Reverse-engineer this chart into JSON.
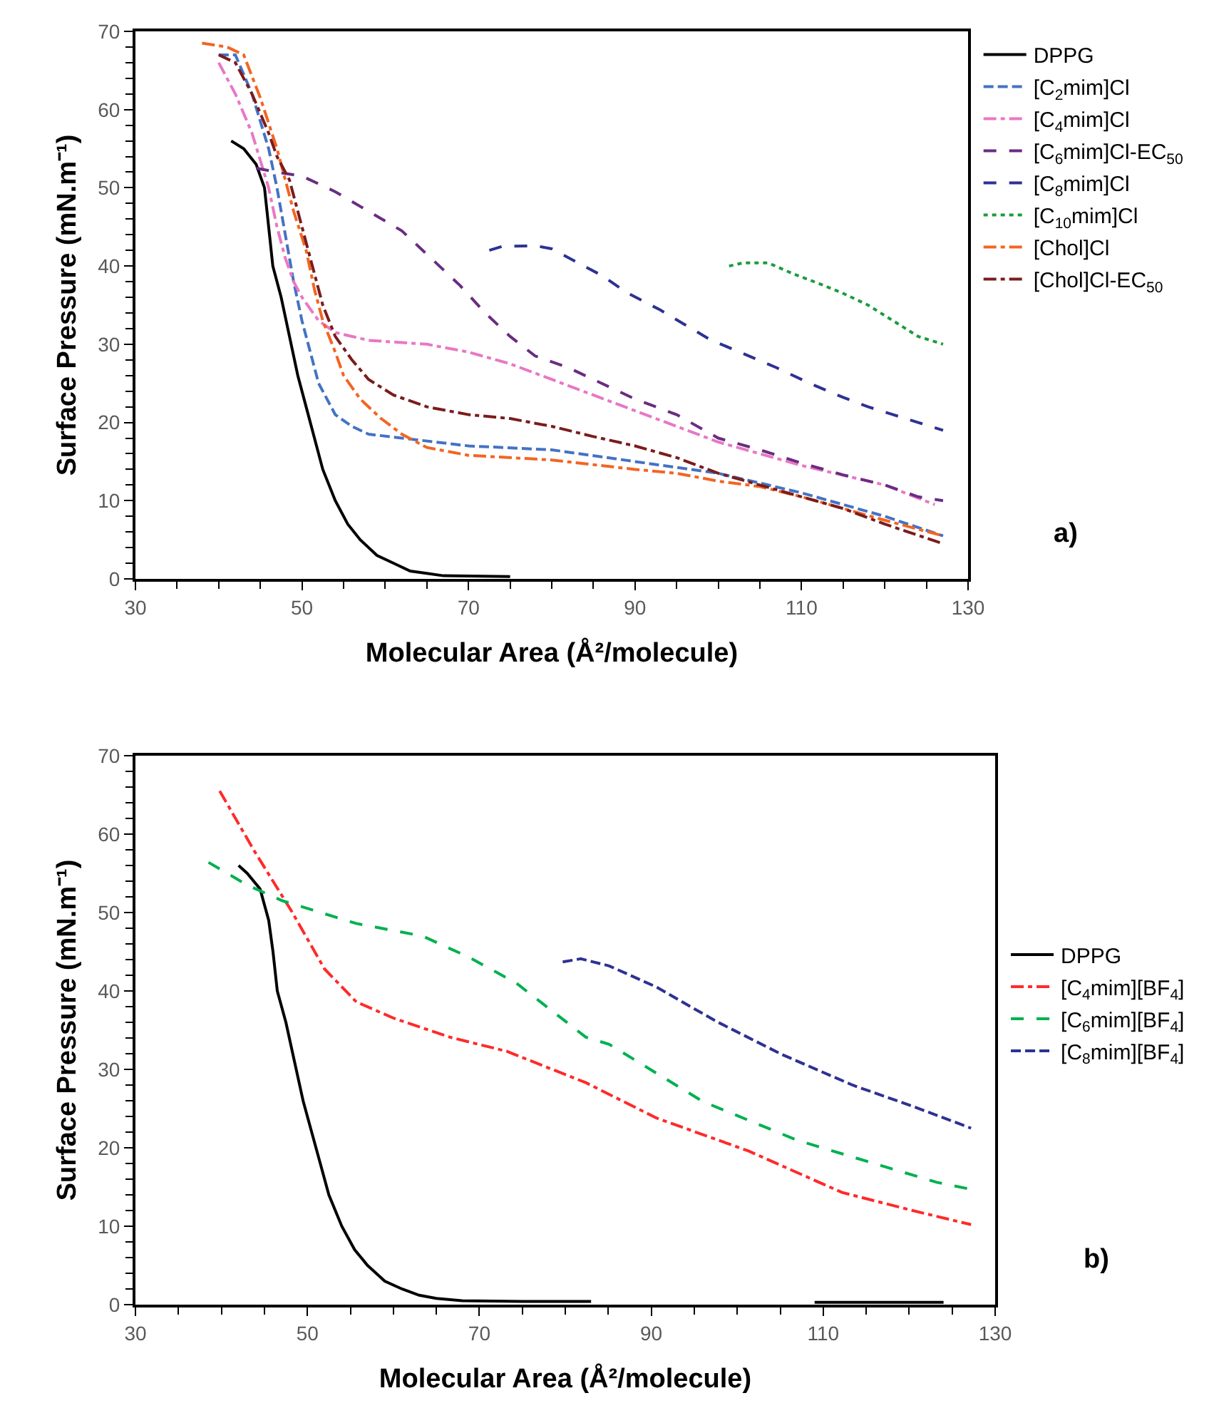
{
  "chart_data": [
    {
      "type": "line",
      "xlabel": "Molecular Area (Å²/molecule)",
      "ylabel": "Surface Pressure (mN.m⁻¹)",
      "xlim": [
        30,
        130
      ],
      "xticks": [
        30,
        50,
        70,
        90,
        110,
        130
      ],
      "ylim": [
        0,
        70
      ],
      "yticks": [
        0,
        10,
        20,
        30,
        40,
        50,
        60,
        70
      ],
      "grid": false,
      "legend": "top right",
      "marker": "none",
      "annotations": [
        "a)"
      ],
      "series": [
        {
          "name": "DPPG",
          "color": "#000000",
          "line_style": "solid",
          "x": [
            41.5,
            43,
            44.5,
            45.5,
            46,
            46.5,
            47.5,
            48.5,
            49.5,
            50.5,
            51.5,
            52.5,
            54,
            55.5,
            57,
            59,
            61,
            63,
            65,
            67,
            75
          ],
          "values": [
            56,
            55,
            53,
            50,
            45,
            40,
            36,
            31,
            26,
            22,
            18,
            14,
            10,
            7,
            5,
            3,
            2,
            1,
            0.7,
            0.4,
            0.3
          ]
        },
        {
          "name": "[C$_{2}$mim]Cl",
          "color": "#4472c4",
          "line_style": "longdash",
          "x": [
            40,
            42,
            44,
            46,
            47,
            48,
            49,
            50,
            51,
            52,
            54,
            56,
            58,
            62,
            70,
            80,
            90,
            100,
            110,
            120,
            127
          ],
          "values": [
            67,
            67,
            62,
            55,
            50,
            44,
            38,
            33,
            29,
            25,
            21,
            19.5,
            18.5,
            18,
            17,
            16.5,
            15,
            13.5,
            11,
            8,
            5.5
          ]
        },
        {
          "name": "[C$_{4}$mim]Cl",
          "color": "#e878c4",
          "line_style": "dashdot",
          "x": [
            40,
            42,
            44,
            46,
            47,
            48,
            49,
            50,
            52,
            54,
            58,
            65,
            70,
            75,
            80,
            90,
            100,
            110,
            120,
            126
          ],
          "values": [
            66,
            62,
            57,
            50,
            45,
            41,
            38,
            36,
            33,
            31.5,
            30.5,
            30,
            29,
            27.5,
            25.5,
            21.5,
            17.5,
            14.5,
            12,
            9.5
          ]
        },
        {
          "name": "[C$_{6}$mim]Cl-EC$_{50}$",
          "color": "#6a2c82",
          "line_style": "dashed",
          "x": [
            44.5,
            47,
            50,
            54,
            58,
            62,
            66,
            69,
            72,
            75,
            78,
            82,
            86,
            90,
            95,
            100,
            105,
            110,
            115,
            120,
            124,
            127
          ],
          "values": [
            52.5,
            52,
            51.5,
            49.5,
            47,
            44.5,
            40.5,
            37.5,
            34,
            31,
            28.5,
            27,
            25,
            23,
            21,
            18,
            16.5,
            14.8,
            13.3,
            12,
            10.5,
            10
          ]
        },
        {
          "name": "[C$_{8}$mim]Cl",
          "color": "#2e3192",
          "line_style": "dashed",
          "x": [
            72.5,
            74,
            78,
            80,
            83,
            86,
            89,
            93,
            96,
            99,
            103,
            107,
            111,
            115,
            118,
            121,
            124,
            127
          ],
          "values": [
            42,
            42.5,
            42.6,
            42.2,
            40.5,
            38.8,
            36.6,
            34.4,
            32.5,
            30.6,
            28.8,
            27,
            25,
            23.2,
            22,
            21,
            20,
            19
          ]
        },
        {
          "name": "[C$_{10}$mim]Cl",
          "color": "#1a9c3e",
          "line_style": "dotted",
          "x": [
            101.3,
            103,
            106,
            109,
            112,
            115,
            118,
            121,
            124,
            127
          ],
          "values": [
            40,
            40.4,
            40.4,
            39,
            37.8,
            36.5,
            35,
            33,
            31,
            30
          ]
        },
        {
          "name": "[Chol]Cl",
          "color": "#f26522",
          "line_style": "dashdot",
          "x": [
            38,
            41,
            43,
            45,
            47,
            48,
            49,
            50.5,
            51.5,
            52.5,
            54,
            55,
            57,
            59.5,
            62,
            65,
            70,
            80,
            90,
            95,
            100,
            105,
            110,
            115,
            120,
            127
          ],
          "values": [
            68.5,
            68,
            67,
            61.5,
            55,
            51,
            47,
            42,
            37,
            33,
            29,
            26,
            23,
            20.5,
            18.5,
            16.8,
            15.8,
            15.2,
            14,
            13.5,
            12.5,
            11.8,
            10.5,
            9,
            7.5,
            5.5
          ]
        },
        {
          "name": "[Chol]Cl-EC$_{50}$",
          "color": "#7b1c1c",
          "line_style": "dashdot",
          "x": [
            40,
            42,
            44,
            46,
            47,
            48.5,
            49.5,
            50.5,
            51.5,
            52.5,
            54,
            56,
            58,
            61,
            65,
            70,
            75,
            80,
            85,
            90,
            95,
            100,
            105,
            110,
            115,
            120,
            127
          ],
          "values": [
            67,
            66,
            62,
            57,
            54,
            51,
            47,
            43,
            39,
            35,
            31,
            28,
            25.5,
            23.5,
            22,
            21,
            20.5,
            19.5,
            18.2,
            17,
            15.5,
            13.5,
            12,
            10.5,
            9,
            7,
            4.5
          ]
        }
      ]
    },
    {
      "type": "line",
      "xlabel": "Molecular Area (Å²/molecule)",
      "ylabel": "Surface Pressure (mN.m⁻¹)",
      "xlim": [
        30,
        130
      ],
      "xticks": [
        30,
        50,
        70,
        90,
        110,
        130
      ],
      "ylim": [
        0,
        70
      ],
      "yticks": [
        0,
        10,
        20,
        30,
        40,
        50,
        60,
        70
      ],
      "grid": false,
      "legend": "right",
      "marker": "none",
      "annotations": [
        "b)"
      ],
      "series": [
        {
          "name": "DPPG",
          "color": "#000000",
          "line_style": "solid",
          "x": [
            42,
            43,
            44.5,
            45.5,
            46,
            46.5,
            47.5,
            48.5,
            49.5,
            50.5,
            51.5,
            52.5,
            54,
            55.5,
            57,
            59,
            61,
            63,
            65,
            68,
            75,
            83,
            96,
            109,
            124
          ],
          "values": [
            56,
            55,
            53,
            49,
            45,
            40,
            36,
            31,
            26,
            22,
            18,
            14,
            10,
            7,
            5,
            3,
            2,
            1.2,
            0.8,
            0.5,
            0.4,
            0.4,
            null,
            0.3,
            0.3
          ]
        },
        {
          "name": "[C$_{4}$mim][BF$_{4}$]",
          "color": "#ff2a2a",
          "line_style": "dashdot",
          "x": [
            39.8,
            43.8,
            48.2,
            52,
            55.7,
            60.1,
            66.6,
            73.2,
            82.4,
            90.6,
            101.3,
            112.2,
            120.4,
            127.2
          ],
          "values": [
            65.5,
            57.9,
            50.1,
            42.8,
            38.6,
            36.5,
            34.1,
            32.3,
            28.3,
            23.8,
            19.6,
            14.3,
            12,
            10.2
          ]
        },
        {
          "name": "[C$_{6}$mim][BF$_{4}$]",
          "color": "#00b050",
          "line_style": "dashed",
          "x": [
            38.5,
            43,
            47.1,
            55.7,
            63.4,
            68.8,
            74.3,
            82.4,
            85.1,
            96,
            106.9,
            115,
            123.2,
            127.2
          ],
          "values": [
            56.4,
            53.5,
            51.5,
            48.6,
            47,
            44.3,
            41,
            34.1,
            33.2,
            25.9,
            21,
            18.3,
            15.6,
            14.7
          ]
        },
        {
          "name": "[C$_{8}$mim][BF$_{4}$]",
          "color": "#2e3192",
          "line_style": "longdash",
          "x": [
            79.7,
            81.8,
            85.1,
            90.6,
            97.6,
            105.2,
            113.4,
            120.4,
            127.2
          ],
          "values": [
            43.7,
            44.1,
            43.2,
            40.5,
            36.1,
            31.9,
            28,
            25.3,
            22.5
          ]
        }
      ]
    }
  ]
}
